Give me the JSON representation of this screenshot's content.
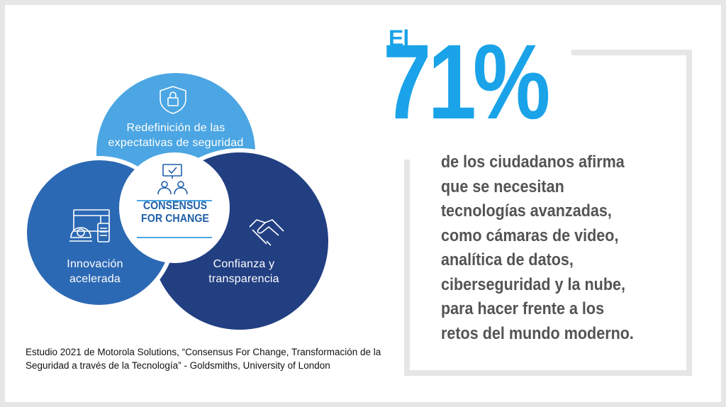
{
  "headline": {
    "prefix": "El",
    "percent": "71%"
  },
  "statement": "de los ciudadanos afirma\nque se necesitan\ntecnologías avanzadas,\ncomo cámaras de video,\nanalítica de datos,\nciberseguridad y la nube,\npara hacer frente a los\nretos del mundo moderno.",
  "source": "Estudio 2021 de Motorola Solutions, “Consensus For Change, Transformación de la Seguridad a través de la Tecnología” - Goldsmiths, University of London",
  "diagram": {
    "center_lines": [
      "CONSENSUS",
      "FOR CHANGE"
    ],
    "circles": [
      {
        "label_lines": [
          "Redefinición de las",
          "expectativas de seguridad"
        ],
        "icon": "shield-lock-icon"
      },
      {
        "label_lines": [
          "Innovación",
          "acelerada"
        ],
        "icon": "camera-radio-icon"
      },
      {
        "label_lines": [
          "Confianza y",
          "transparencia"
        ],
        "icon": "handshake-icon"
      }
    ],
    "center_icon": "people-message-icon"
  },
  "colors": {
    "accent_blue": "#1aa3e8",
    "circle_top": "#4ba6e3",
    "circle_left": "#2c69b4",
    "circle_right": "#223f82",
    "text_gray": "#545454",
    "frame_gray": "#e6e6e6"
  }
}
